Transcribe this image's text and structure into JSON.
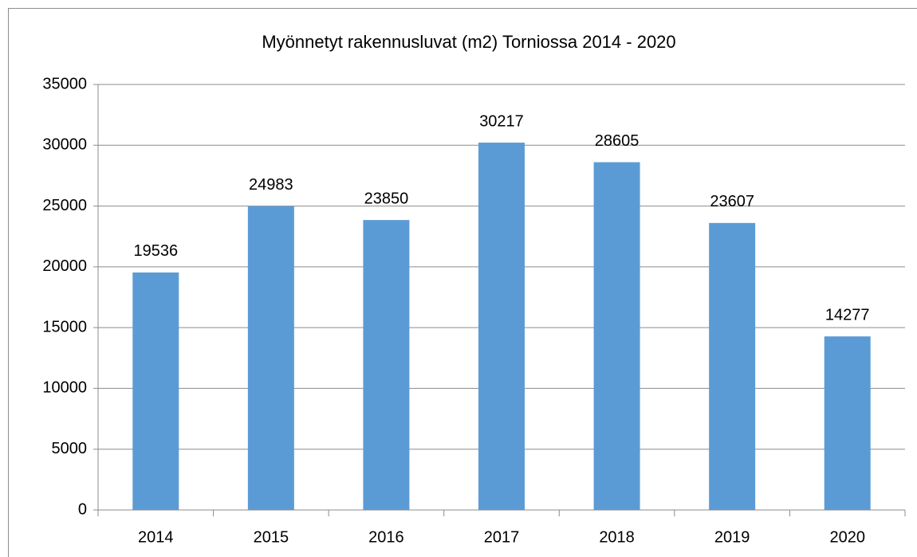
{
  "chart_data": {
    "type": "bar",
    "title": "Myönnetyt rakennusluvat (m2) Torniossa 2014 - 2020",
    "categories": [
      "2014",
      "2015",
      "2016",
      "2017",
      "2018",
      "2019",
      "2020"
    ],
    "values": [
      19536,
      24983,
      23850,
      30217,
      28605,
      23607,
      14277
    ],
    "color": "#5b9bd5",
    "ylim": [
      0,
      35000
    ],
    "yticks": [
      0,
      5000,
      10000,
      15000,
      20000,
      25000,
      30000,
      35000
    ],
    "grid": true,
    "data_labels": true
  }
}
